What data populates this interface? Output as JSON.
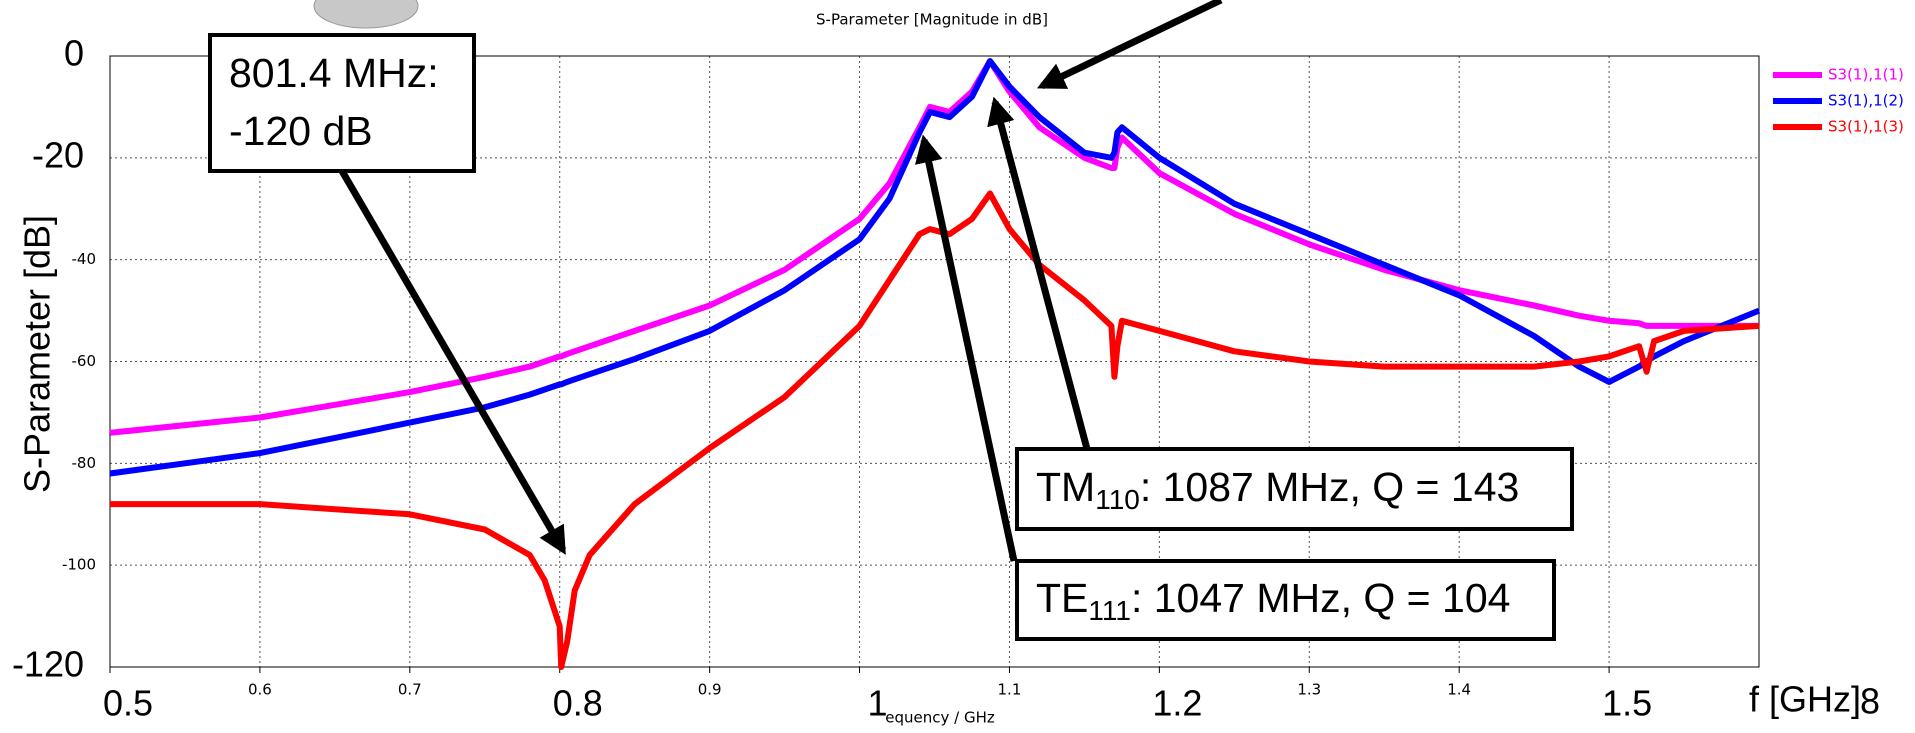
{
  "chart_data": {
    "type": "line",
    "title": "S-Parameter [Magnitude in dB]",
    "y_label": "S-Parameter [dB]",
    "x_label": "f [GHz]",
    "x_label_fragment": "8",
    "x_label_original": "equency / GHz",
    "x": [
      0.5,
      0.55,
      0.6,
      0.65,
      0.7,
      0.75,
      0.78,
      0.79,
      0.8,
      0.801,
      0.805,
      0.81,
      0.82,
      0.85,
      0.9,
      0.95,
      1.0,
      1.02,
      1.04,
      1.047,
      1.06,
      1.075,
      1.087,
      1.1,
      1.12,
      1.15,
      1.168,
      1.17,
      1.172,
      1.175,
      1.2,
      1.25,
      1.3,
      1.35,
      1.4,
      1.45,
      1.48,
      1.5,
      1.52,
      1.525,
      1.53,
      1.55,
      1.6
    ],
    "series": [
      {
        "name": "S3(1),1(1)",
        "color": "#ff00ff",
        "values": [
          -74,
          -72.5,
          -71,
          -68.5,
          -66,
          -63,
          -61,
          -60,
          -59,
          -59,
          -58.5,
          -58,
          -57,
          -54,
          -49,
          -42,
          -32,
          -25,
          -14,
          -10,
          -11,
          -7,
          -1,
          -7,
          -14,
          -20,
          -22,
          -22,
          -18,
          -16,
          -23,
          -31,
          -37,
          -42,
          -46,
          -49,
          -51,
          -52,
          -52.5,
          -53,
          -53,
          -53,
          -53
        ]
      },
      {
        "name": "S3(1),1(2)",
        "color": "#0000ff",
        "values": [
          -82,
          -80,
          -78,
          -75,
          -72,
          -69,
          -66.5,
          -65.5,
          -64.5,
          -64.5,
          -64,
          -63.5,
          -62.5,
          -59.5,
          -54,
          -46,
          -36,
          -28,
          -15,
          -11,
          -12,
          -8,
          -1,
          -6,
          -12,
          -19,
          -20,
          -19,
          -15,
          -14,
          -20,
          -29,
          -35,
          -41,
          -47,
          -55,
          -61,
          -64,
          -61,
          -60,
          -59,
          -56,
          -50
        ]
      },
      {
        "name": "S3(1),1(3)",
        "color": "#ff0000",
        "values": [
          -88,
          -88,
          -88,
          -89,
          -90,
          -93,
          -98,
          -103,
          -112,
          -120,
          -115,
          -105,
          -98,
          -88,
          -77,
          -67,
          -53,
          -44,
          -35,
          -34,
          -35,
          -32,
          -27,
          -34,
          -41,
          -48,
          -53,
          -63,
          -57,
          -52,
          -54,
          -58,
          -60,
          -61,
          -61,
          -61,
          -60,
          -59,
          -57,
          -62,
          -56,
          -54,
          -53
        ]
      }
    ],
    "xlim": [
      0.5,
      1.6
    ],
    "ylim": [
      -120,
      0
    ],
    "xticks": [
      0.5,
      0.6,
      0.7,
      0.8,
      0.9,
      1,
      1.1,
      1.2,
      1.3,
      1.4,
      1.5
    ],
    "yticks": [
      -120,
      -100,
      -80,
      -60,
      -40,
      -20,
      0
    ],
    "grid": true,
    "legend": "right",
    "annotations": [
      {
        "lines": [
          "801.4 MHz:",
          "-120 dB"
        ]
      },
      {
        "parts": [
          "TM",
          "110",
          ": 1087 MHz, Q = 143"
        ]
      },
      {
        "parts": [
          "TE",
          "111",
          ": 1047 MHz, Q = 104"
        ]
      }
    ]
  }
}
